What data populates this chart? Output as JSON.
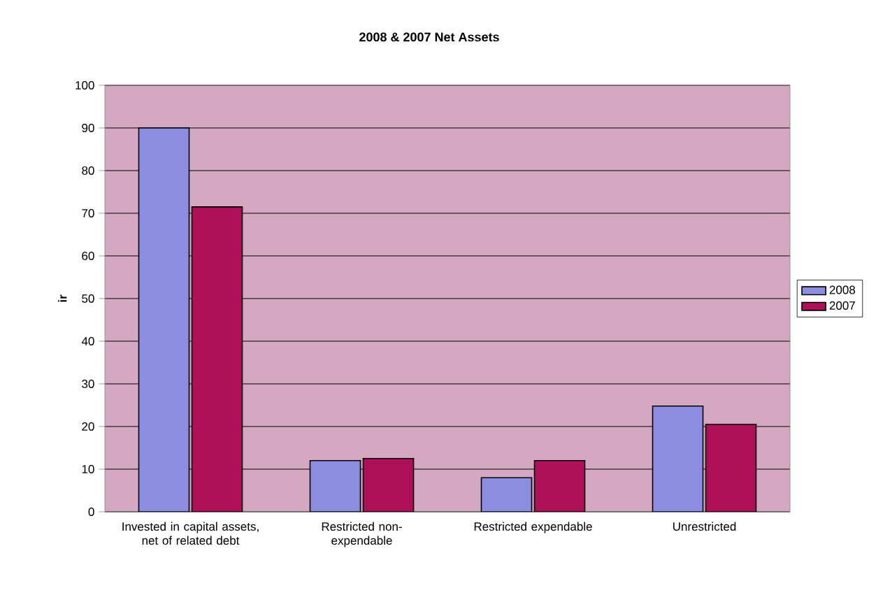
{
  "chart_data": {
    "type": "bar",
    "title": "2008 & 2007 Net Assets",
    "ylabel": "ir",
    "categories": [
      "Invested in capital assets, net of related debt",
      "Restricted non-expendable",
      "Restricted expendable",
      "Unrestricted"
    ],
    "series": [
      {
        "name": "2008",
        "color": "#8c8ce0",
        "values": [
          90,
          12,
          8,
          24.8
        ]
      },
      {
        "name": "2007",
        "color": "#b0105a",
        "values": [
          71.5,
          12.5,
          12,
          20.5
        ]
      }
    ],
    "ylim": [
      0,
      100
    ],
    "yticks": [
      0,
      10,
      20,
      30,
      40,
      50,
      60,
      70,
      80,
      90,
      100
    ],
    "grid": "y",
    "legend": "right"
  }
}
